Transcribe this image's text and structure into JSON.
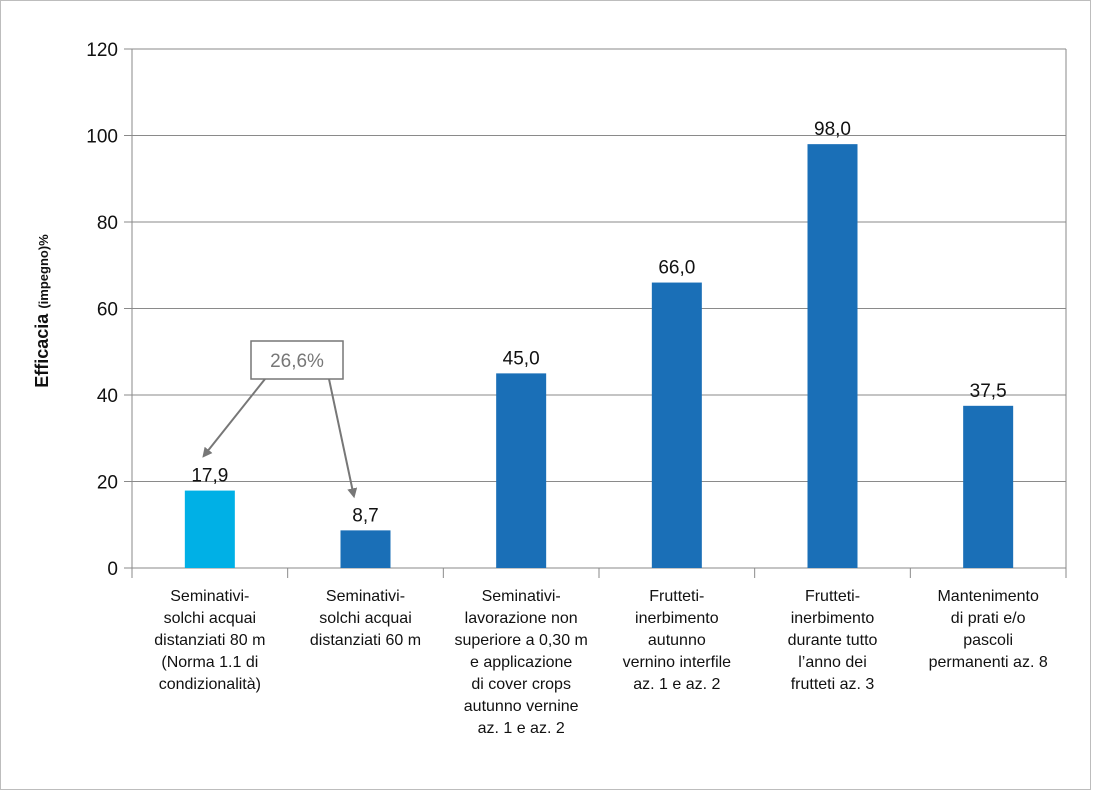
{
  "chart_data": {
    "type": "bar",
    "ylabel": "Efficacia",
    "ylabel_sub": "(impegno)%",
    "ylim": [
      0,
      120
    ],
    "yticks": [
      "0",
      "20",
      "40",
      "60",
      "80",
      "100",
      "120"
    ],
    "grid": true,
    "categories": [
      [
        "Seminativi-",
        "solchi acquai",
        "distanziati 80 m",
        "(Norma 1.1 di",
        "condizionalità)"
      ],
      [
        "Seminativi-",
        "solchi acquai",
        "distanziati 60 m"
      ],
      [
        "Seminativi-",
        "lavorazione non",
        "superiore a 0,30 m",
        "e applicazione",
        "di cover crops",
        "autunno vernine",
        "az. 1 e az. 2"
      ],
      [
        "Frutteti-",
        "inerbimento",
        "autunno",
        "vernino interfile",
        "az. 1 e az. 2"
      ],
      [
        "Frutteti-",
        "inerbimento",
        "durante tutto",
        "l’anno dei",
        "frutteti az. 3"
      ],
      [
        "Mantenimento",
        "di prati e/o",
        "pascoli",
        "permanenti az. 8"
      ]
    ],
    "values": [
      17.9,
      8.7,
      45.0,
      66.0,
      98.0,
      37.5
    ],
    "value_labels": [
      "17,9",
      "8,7",
      "45,0",
      "66,0",
      "98,0",
      "37,5"
    ],
    "bar_colors": [
      "#00b0e6",
      "#1a6fb7",
      "#1a6fb7",
      "#1a6fb7",
      "#1a6fb7",
      "#1a6fb7"
    ],
    "gridline_color": "#8a8a8a",
    "annotation": {
      "text": "26,6%",
      "color": "#777777",
      "arrow_targets": [
        0,
        1
      ]
    }
  }
}
